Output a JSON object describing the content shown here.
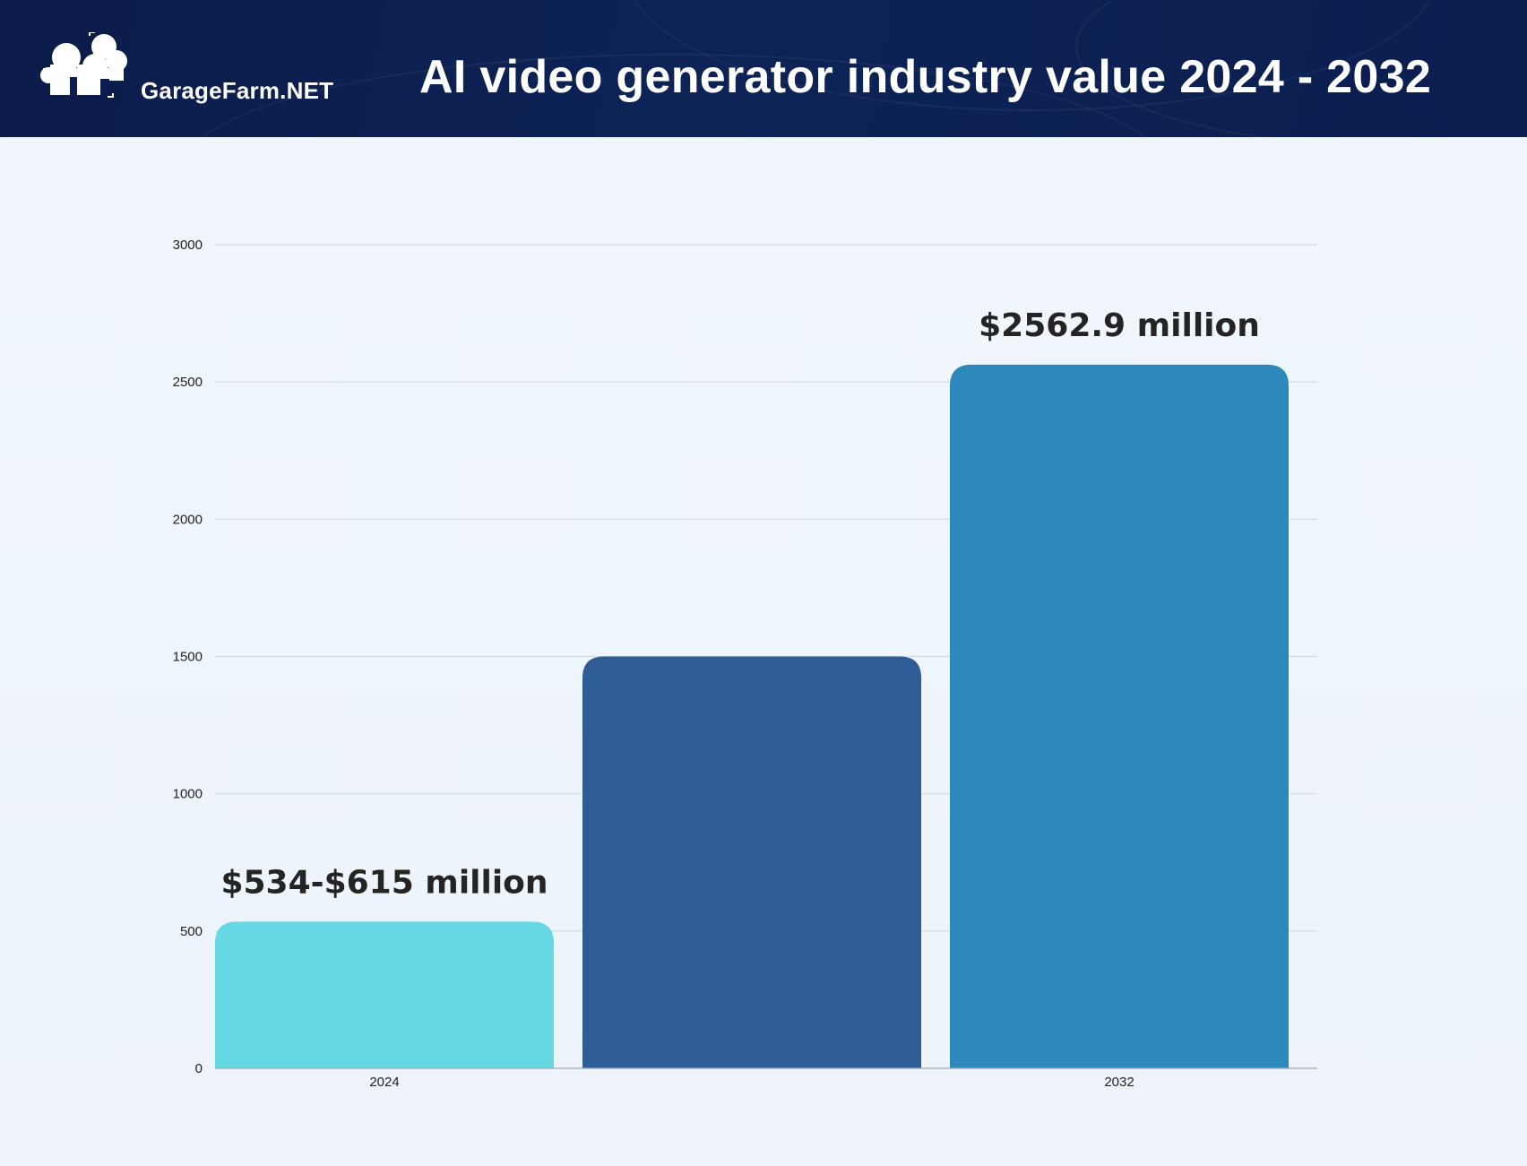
{
  "header": {
    "brand": "GarageFarm.NET",
    "title": "AI video generator industry value 2024 - 2032",
    "logo_icon": "cloud-farm-logo-icon"
  },
  "colors": {
    "header_bg": "#0c1f52",
    "bar_2024": "#66d9e5",
    "bar_middle": "#2d5c97",
    "bar_2032": "#2d88bb",
    "gridline": "#d2d9e0"
  },
  "chart_data": {
    "type": "bar",
    "categories": [
      "2024",
      "",
      "2032"
    ],
    "values": [
      534,
      1500,
      2562.9
    ],
    "data_labels": [
      "$534-$615 million",
      "",
      "$2562.9 million"
    ],
    "ylim": [
      0,
      3000
    ],
    "yticks": [
      0,
      500,
      1000,
      1500,
      2000,
      2500,
      3000
    ],
    "grid": true,
    "xlabel": "",
    "ylabel": ""
  }
}
